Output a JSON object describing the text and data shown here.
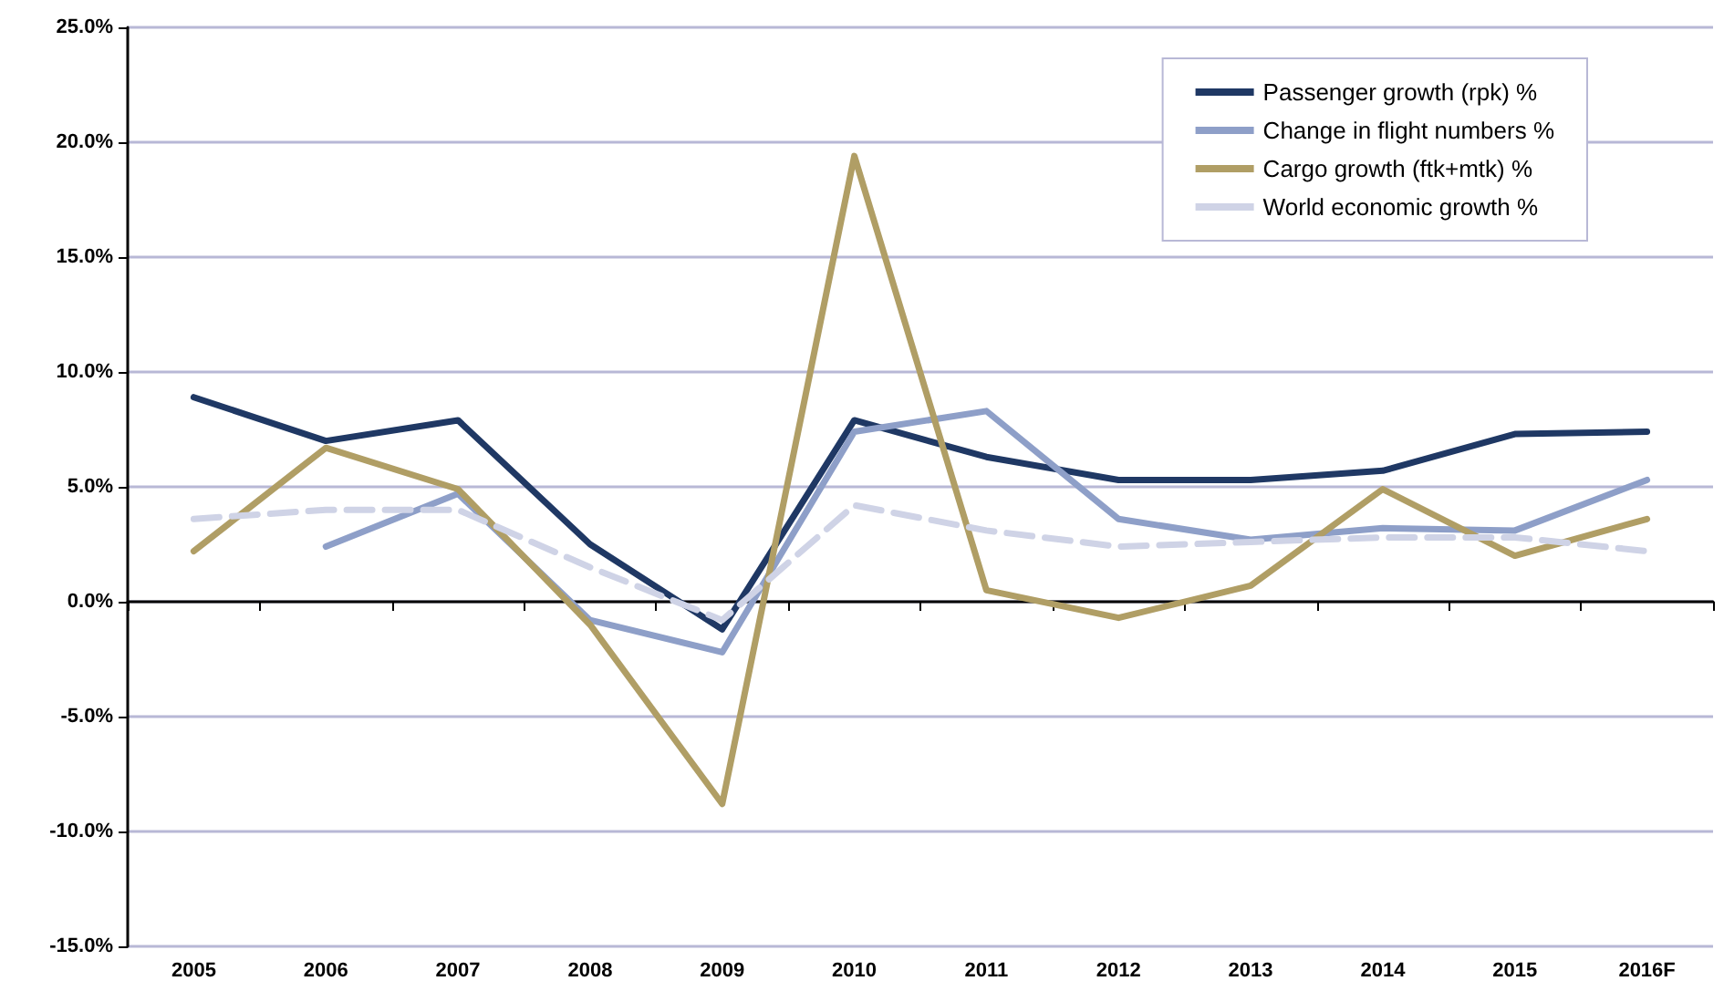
{
  "chart_data": {
    "type": "line",
    "categories": [
      "2005",
      "2006",
      "2007",
      "2008",
      "2009",
      "2010",
      "2011",
      "2012",
      "2013",
      "2014",
      "2015",
      "2016F"
    ],
    "series": [
      {
        "name": "Passenger growth (rpk) %",
        "color": "#1f3864",
        "values": [
          8.9,
          7.0,
          7.9,
          2.5,
          -1.2,
          7.9,
          6.3,
          5.3,
          5.3,
          5.7,
          7.3,
          7.4
        ]
      },
      {
        "name": "Change in flight numbers %",
        "color": "#8e9fc8",
        "values": [
          null,
          2.4,
          4.7,
          -0.8,
          -2.2,
          7.4,
          8.3,
          3.6,
          2.7,
          3.2,
          3.1,
          5.3
        ]
      },
      {
        "name": "Cargo growth (ftk+mtk) %",
        "color": "#b09e65",
        "values": [
          2.2,
          6.7,
          4.9,
          -1.0,
          -8.8,
          19.4,
          0.5,
          -0.7,
          0.7,
          4.9,
          2.0,
          3.6
        ]
      },
      {
        "name": "World economic growth %",
        "color": "#cfd3e6",
        "line_style": "dashed",
        "values": [
          3.6,
          4.0,
          4.0,
          1.5,
          -0.8,
          4.2,
          3.1,
          2.4,
          2.6,
          2.8,
          2.8,
          2.2
        ]
      }
    ],
    "ylim": [
      -15,
      25
    ],
    "yticks": [
      {
        "value": -15,
        "label": "-15.0%"
      },
      {
        "value": -10,
        "label": "-10.0%"
      },
      {
        "value": -5,
        "label": "-5.0%"
      },
      {
        "value": 0,
        "label": "0.0%"
      },
      {
        "value": 5,
        "label": "5.0%"
      },
      {
        "value": 10,
        "label": "10.0%"
      },
      {
        "value": 15,
        "label": "15.0%"
      },
      {
        "value": 20,
        "label": "20.0%"
      },
      {
        "value": 25,
        "label": "25.0%"
      }
    ],
    "grid": "y",
    "legend": "top right",
    "marker": "none",
    "line_style": "solid"
  }
}
